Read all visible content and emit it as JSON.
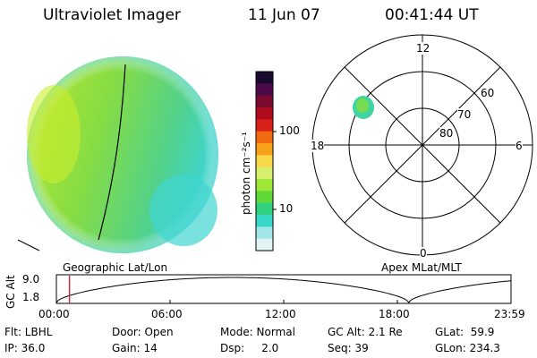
{
  "header": {
    "instrument": "Ultraviolet Imager",
    "date": "11 Jun 07",
    "time": "00:41:44 UT"
  },
  "colorbar": {
    "unit": "photon cm⁻²s⁻¹",
    "ticks": [
      "100",
      "10"
    ],
    "colors": [
      "#1a0a2e",
      "#4b0a4a",
      "#7a0a30",
      "#b00a1e",
      "#d8201a",
      "#f06a10",
      "#f8a018",
      "#f8d848",
      "#d8f070",
      "#a0e838",
      "#60d838",
      "#30d080",
      "#38d8c8",
      "#a0e8e8",
      "#e0f4f4"
    ]
  },
  "geo_panel": {
    "label": "Geographic Lat/Lon",
    "disk_colors": [
      "#b8e830",
      "#7ed84a",
      "#4cd08a",
      "#40d4c8"
    ]
  },
  "polar_panel": {
    "label": "Apex MLat/MLT",
    "mlt_labels": [
      "12",
      "18",
      "6",
      "0"
    ],
    "lat_labels": [
      "60",
      "70",
      "80"
    ]
  },
  "alt_plot": {
    "ylabel": "GC Alt",
    "yticks": [
      "9.0",
      "1.8"
    ],
    "xticks": [
      "00:00",
      "06:00",
      "12:00",
      "18:00",
      "23:59"
    ],
    "marker_hour": 0.69,
    "curve_color": "#000000",
    "marker_color": "#c03040"
  },
  "info": {
    "flt": "Flt: LBHL",
    "ip": "IP: 36.0",
    "door": "Door: Open",
    "gain": "Gain: 14",
    "mode": "Mode: Normal",
    "dsp": "Dsp:     2.0",
    "gcalt": "GC Alt: 2.1 Re",
    "seq": "Seq: 39",
    "glat": "GLat:  59.9",
    "glon": "GLon: 234.3"
  }
}
